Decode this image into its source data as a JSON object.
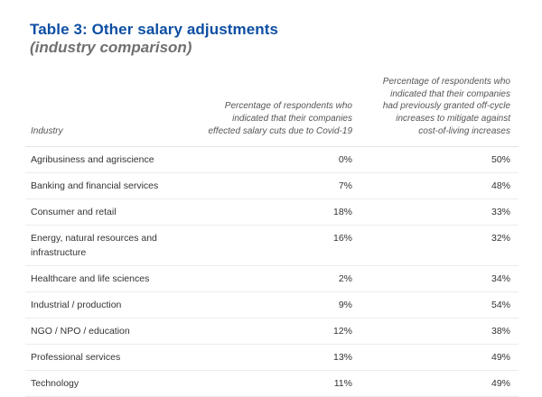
{
  "title": "Table 3: Other salary adjustments",
  "subtitle": "(industry comparison)",
  "table": {
    "headers": [
      "Industry",
      "Percentage of respondents who indicated that their companies effected salary cuts due to Covid-19",
      "Percentage of respondents who indicated that their companies had previously granted off-cycle increases to mitigate against cost-of-living increases"
    ],
    "rows": [
      {
        "industry": "Agribusiness and agriscience",
        "salary_cuts": "0%",
        "off_cycle": "50%"
      },
      {
        "industry": "Banking and financial services",
        "salary_cuts": "7%",
        "off_cycle": "48%"
      },
      {
        "industry": "Consumer and retail",
        "salary_cuts": "18%",
        "off_cycle": "33%"
      },
      {
        "industry": "Energy, natural resources and infrastructure",
        "salary_cuts": "16%",
        "off_cycle": "32%"
      },
      {
        "industry": "Healthcare and life sciences",
        "salary_cuts": "2%",
        "off_cycle": "34%"
      },
      {
        "industry": "Industrial / production",
        "salary_cuts": "9%",
        "off_cycle": "54%"
      },
      {
        "industry": "NGO / NPO / education",
        "salary_cuts": "12%",
        "off_cycle": "38%"
      },
      {
        "industry": "Professional services",
        "salary_cuts": "13%",
        "off_cycle": "49%"
      },
      {
        "industry": "Technology",
        "salary_cuts": "11%",
        "off_cycle": "49%"
      }
    ]
  }
}
